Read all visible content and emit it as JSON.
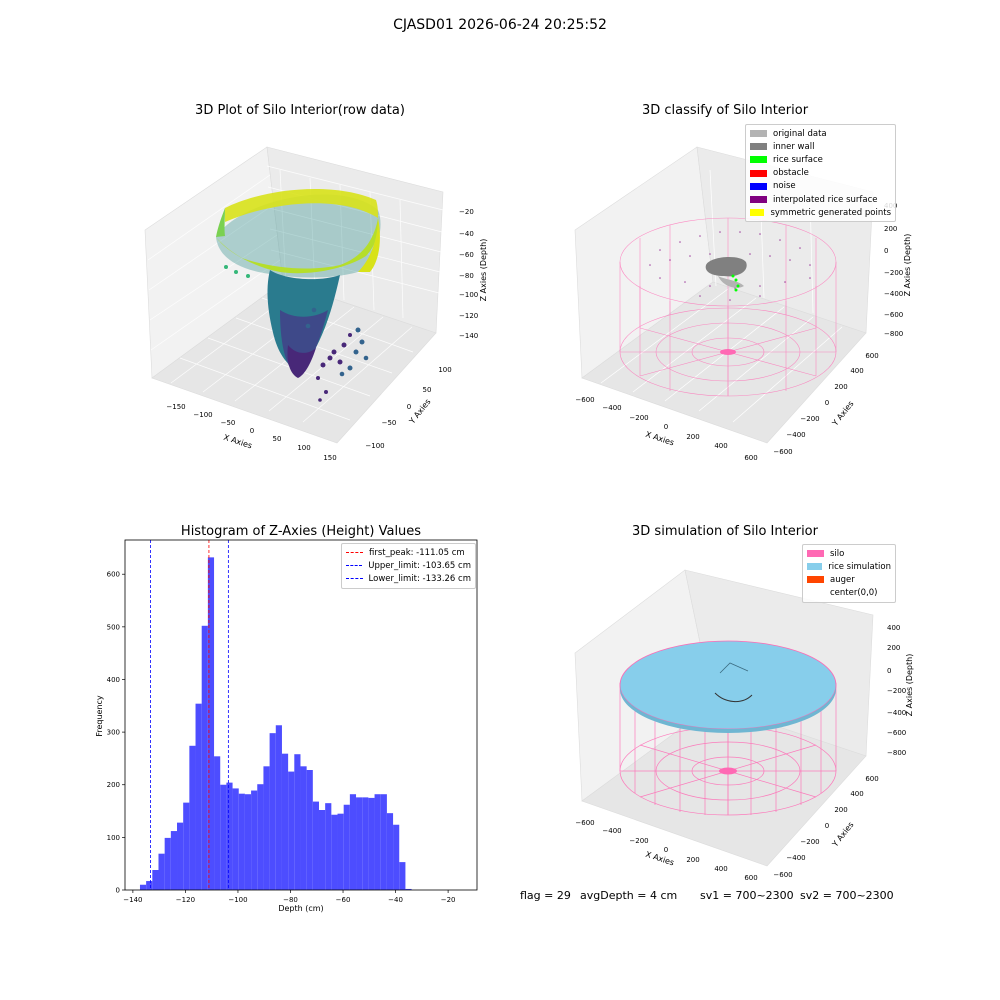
{
  "suptitle": "CJASD01 2026-06-24 20:25:52",
  "panels": {
    "raw": {
      "title": "3D Plot of Silo Interior(row data)",
      "xlabel": "X Axies",
      "ylabel": "Y Axies",
      "zlabel": "Z Axies (Depth)",
      "xticks": [
        "−150",
        "−100",
        "−50",
        "0",
        "50",
        "100",
        "150"
      ],
      "yticks": [
        "−100",
        "−50",
        "0",
        "50",
        "100"
      ],
      "zticks": [
        "−20",
        "−40",
        "−60",
        "−80",
        "−100",
        "−120",
        "−140"
      ]
    },
    "classify": {
      "title": "3D classify of Silo Interior",
      "xlabel": "X Axies",
      "ylabel": "Y Axies",
      "zlabel": "Z Axies (Depth)",
      "xticks": [
        "−600",
        "−400",
        "−200",
        "0",
        "200",
        "400",
        "600"
      ],
      "yticks": [
        "−600",
        "−400",
        "−200",
        "0",
        "200",
        "400",
        "600"
      ],
      "zticks": [
        "400",
        "200",
        "0",
        "−200",
        "−400",
        "−600",
        "−800"
      ],
      "legend": [
        {
          "label": "original data",
          "color": "#b3b3b3"
        },
        {
          "label": "inner wall",
          "color": "#808080"
        },
        {
          "label": "rice surface",
          "color": "#00ff00"
        },
        {
          "label": "obstacle",
          "color": "#ff0000"
        },
        {
          "label": "noise",
          "color": "#0000ff"
        },
        {
          "label": "interpolated rice surface",
          "color": "#800080"
        },
        {
          "label": "symmetric generated points",
          "color": "#ffff00"
        }
      ]
    },
    "simulation": {
      "title": "3D simulation of Silo Interior",
      "xlabel": "X Axies",
      "ylabel": "Y Axies",
      "zlabel": "Z Axies (Depth)",
      "xticks": [
        "−600",
        "−400",
        "−200",
        "0",
        "200",
        "400",
        "600"
      ],
      "yticks": [
        "−600",
        "−400",
        "−200",
        "0",
        "200",
        "400",
        "600"
      ],
      "zticks": [
        "400",
        "200",
        "0",
        "−200",
        "−400",
        "−600",
        "−800"
      ],
      "legend": [
        {
          "label": "silo",
          "color": "#ff69b4"
        },
        {
          "label": "rice simulation",
          "color": "#87ceeb"
        },
        {
          "label": "auger",
          "color": "#ff4500"
        },
        {
          "label": "center(0,0)",
          "color": "#ffffff"
        }
      ]
    }
  },
  "info": {
    "flag": "flag = 29",
    "avg_depth": "avgDepth = 4 cm",
    "sv1": "sv1 = 700~2300",
    "sv2": "sv2 = 700~2300"
  },
  "chart_data": [
    {
      "type": "histogram",
      "title": "Histogram of Z-Axies (Height) Values",
      "xlabel": "Depth (cm)",
      "ylabel": "Frequency",
      "bar_color": "#4d4dff",
      "xlim": [
        -143,
        -9
      ],
      "ylim": [
        0,
        665
      ],
      "xticks": [
        -140,
        -120,
        -100,
        -80,
        -60,
        -40,
        -20
      ],
      "yticks": [
        0,
        100,
        200,
        300,
        400,
        500,
        600
      ],
      "bin_width": 2.35,
      "bin_start": -137.3,
      "counts": [
        10,
        17,
        38,
        69,
        99,
        112,
        128,
        166,
        274,
        354,
        502,
        632,
        254,
        200,
        204,
        193,
        183,
        182,
        189,
        201,
        235,
        298,
        313,
        259,
        225,
        258,
        235,
        228,
        168,
        152,
        165,
        143,
        145,
        162,
        182,
        176,
        176,
        175,
        182,
        182,
        146,
        124,
        53,
        2
      ],
      "lines": [
        {
          "label": "first_peak: -111.05 cm",
          "x": -111.05,
          "color": "#ff0000"
        },
        {
          "label": "Upper_limit: -103.65 cm",
          "x": -103.65,
          "color": "#0000ff"
        },
        {
          "label": "Lower_limit: -133.26 cm",
          "x": -133.26,
          "color": "#0000ff"
        }
      ]
    }
  ]
}
